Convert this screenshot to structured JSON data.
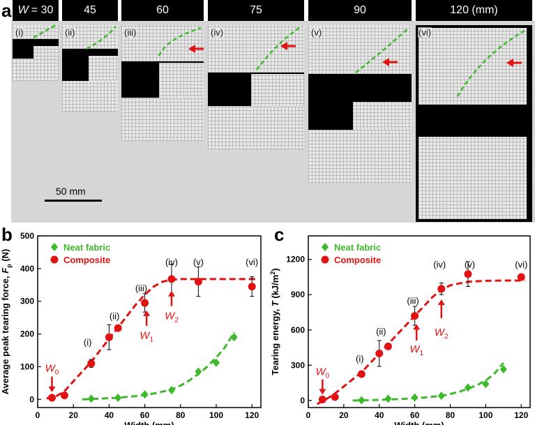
{
  "panel_labels": {
    "a": "a",
    "b": "b",
    "c": "c"
  },
  "widths_header": [
    {
      "prefix": "W",
      "text": "= 30"
    },
    {
      "prefix": "",
      "text": "45"
    },
    {
      "prefix": "",
      "text": "60"
    },
    {
      "prefix": "",
      "text": "75"
    },
    {
      "prefix": "",
      "text": "90"
    },
    {
      "prefix": "",
      "text": "120 (mm)"
    }
  ],
  "sample_labels": [
    "(i)",
    "(ii)",
    "(iii)",
    "(iv)",
    "(v)",
    "(vi)"
  ],
  "scale_bar": "50 mm",
  "colors": {
    "neat": "#3cb82a",
    "composite": "#e01212",
    "arrow": "#e01212"
  },
  "chart_data": [
    {
      "type": "scatter",
      "ylabel_main": "Average peak tearing  force,",
      "ylabel_symbol": "F",
      "ylabel_sub": "p",
      "ylabel_unit": "(N)",
      "xlabel": "Width (mm)",
      "xlim": [
        0,
        125
      ],
      "ylim": [
        -25,
        500
      ],
      "xticks": [
        0,
        20,
        40,
        60,
        80,
        100,
        120
      ],
      "yticks": [
        0,
        100,
        200,
        300,
        400,
        500
      ],
      "legend": [
        "Neat fabric",
        "Composite"
      ],
      "legend_placement": "top-left",
      "series": [
        {
          "name": "Neat fabric",
          "marker": "diamond",
          "x": [
            30,
            45,
            60,
            75,
            90,
            100,
            110
          ],
          "y": [
            2,
            5,
            15,
            28,
            85,
            112,
            190
          ],
          "err": [
            0,
            0,
            0,
            0,
            0,
            0,
            6
          ]
        },
        {
          "name": "Composite",
          "marker": "circle",
          "x": [
            8,
            15,
            30,
            40,
            45,
            60,
            75,
            90,
            120
          ],
          "y": [
            5,
            12,
            110,
            190,
            218,
            295,
            368,
            360,
            345
          ],
          "err": [
            0,
            0,
            12,
            38,
            0,
            28,
            45,
            45,
            30
          ]
        }
      ],
      "fits": [
        {
          "series": "Composite",
          "x": [
            5,
            10,
            15,
            20,
            25,
            30,
            35,
            40,
            45,
            50,
            55,
            60,
            65,
            70,
            75,
            80,
            90,
            100,
            110,
            122
          ],
          "y": [
            3,
            8,
            25,
            55,
            85,
            115,
            150,
            185,
            220,
            255,
            290,
            320,
            345,
            360,
            366,
            368,
            368,
            368,
            368,
            368
          ]
        },
        {
          "series": "Neat fabric",
          "x": [
            25,
            35,
            45,
            55,
            65,
            75,
            80,
            85,
            90,
            95,
            100,
            105,
            110
          ],
          "y": [
            0,
            2,
            5,
            10,
            18,
            30,
            42,
            58,
            78,
            100,
            128,
            160,
            205
          ]
        }
      ],
      "series_labels": [
        {
          "text": "(i)",
          "x": 28,
          "y": 165
        },
        {
          "text": "(ii)",
          "x": 43,
          "y": 245
        },
        {
          "text": "(iii)",
          "x": 58,
          "y": 330
        },
        {
          "text": "(iv)",
          "x": 75,
          "y": 410
        },
        {
          "text": "(v)",
          "x": 90,
          "y": 410
        },
        {
          "text": "(vi)",
          "x": 120,
          "y": 410
        }
      ],
      "annotations": [
        {
          "sym": "W",
          "sub": "0",
          "arrow_x": 8,
          "arrow_from": 70,
          "arrow_to": 22,
          "tx": 8,
          "ty": 85
        },
        {
          "sym": "W",
          "sub": "1",
          "arrow_x": 61,
          "arrow_from": 225,
          "arrow_to": 272,
          "tx": 61,
          "ty": 185
        },
        {
          "sym": "W",
          "sub": "2",
          "arrow_x": 75,
          "arrow_from": 285,
          "arrow_to": 332,
          "tx": 75,
          "ty": 245
        }
      ]
    },
    {
      "type": "scatter",
      "ylabel_main": "Tearing energy,",
      "ylabel_symbol": "T",
      "ylabel_unit": "(kJ/m",
      "ylabel_sup": "2",
      "ylabel_close": ")",
      "xlabel": "Width (mm)",
      "xlim": [
        0,
        125
      ],
      "ylim": [
        -60,
        1400
      ],
      "xticks": [
        0,
        20,
        40,
        60,
        80,
        100,
        120
      ],
      "yticks": [
        0,
        300,
        600,
        900,
        1200
      ],
      "legend": [
        "Neat fabric",
        "Composite"
      ],
      "legend_placement": "top-left",
      "series": [
        {
          "name": "Neat fabric",
          "marker": "diamond",
          "x": [
            30,
            45,
            60,
            75,
            90,
            100,
            110
          ],
          "y": [
            2,
            15,
            25,
            40,
            110,
            140,
            265
          ],
          "err": [
            0,
            0,
            0,
            0,
            0,
            0,
            0
          ]
        },
        {
          "name": "Composite",
          "marker": "circle",
          "x": [
            8,
            15,
            30,
            40,
            45,
            60,
            75,
            90,
            120
          ],
          "y": [
            8,
            30,
            225,
            400,
            460,
            720,
            950,
            1075,
            1050
          ],
          "err": [
            0,
            0,
            25,
            110,
            0,
            80,
            50,
            105,
            0
          ]
        }
      ],
      "fits": [
        {
          "series": "Composite",
          "x": [
            5,
            10,
            15,
            20,
            25,
            30,
            35,
            40,
            45,
            50,
            55,
            60,
            65,
            70,
            75,
            80,
            90,
            100,
            110,
            122
          ],
          "y": [
            -30,
            10,
            60,
            120,
            180,
            240,
            320,
            400,
            480,
            560,
            640,
            720,
            800,
            880,
            940,
            980,
            1010,
            1018,
            1020,
            1020
          ]
        },
        {
          "series": "Neat fabric",
          "x": [
            25,
            35,
            45,
            55,
            65,
            75,
            80,
            85,
            90,
            95,
            100,
            105,
            110
          ],
          "y": [
            0,
            3,
            8,
            15,
            25,
            40,
            55,
            75,
            100,
            130,
            170,
            230,
            320
          ]
        }
      ],
      "series_labels": [
        {
          "text": "(i)",
          "x": 29,
          "y": 330
        },
        {
          "text": "(ii)",
          "x": 41,
          "y": 560
        },
        {
          "text": "(iii)",
          "x": 59,
          "y": 820
        },
        {
          "text": "(iv)",
          "x": 74,
          "y": 1130
        },
        {
          "text": "(v)",
          "x": 91,
          "y": 1130
        },
        {
          "text": "(vi)",
          "x": 120,
          "y": 1130
        }
      ],
      "annotations": [
        {
          "sym": "W",
          "sub": "0",
          "arrow_x": 8,
          "arrow_from": 180,
          "arrow_to": 50,
          "tx": 8,
          "ty": 215
        },
        {
          "sym": "W",
          "sub": "1",
          "arrow_x": 61,
          "arrow_from": 510,
          "arrow_to": 650,
          "tx": 61,
          "ty": 410
        },
        {
          "sym": "W",
          "sub": "2",
          "arrow_x": 75,
          "arrow_from": 700,
          "arrow_to": 860,
          "tx": 75,
          "ty": 550
        }
      ]
    }
  ]
}
